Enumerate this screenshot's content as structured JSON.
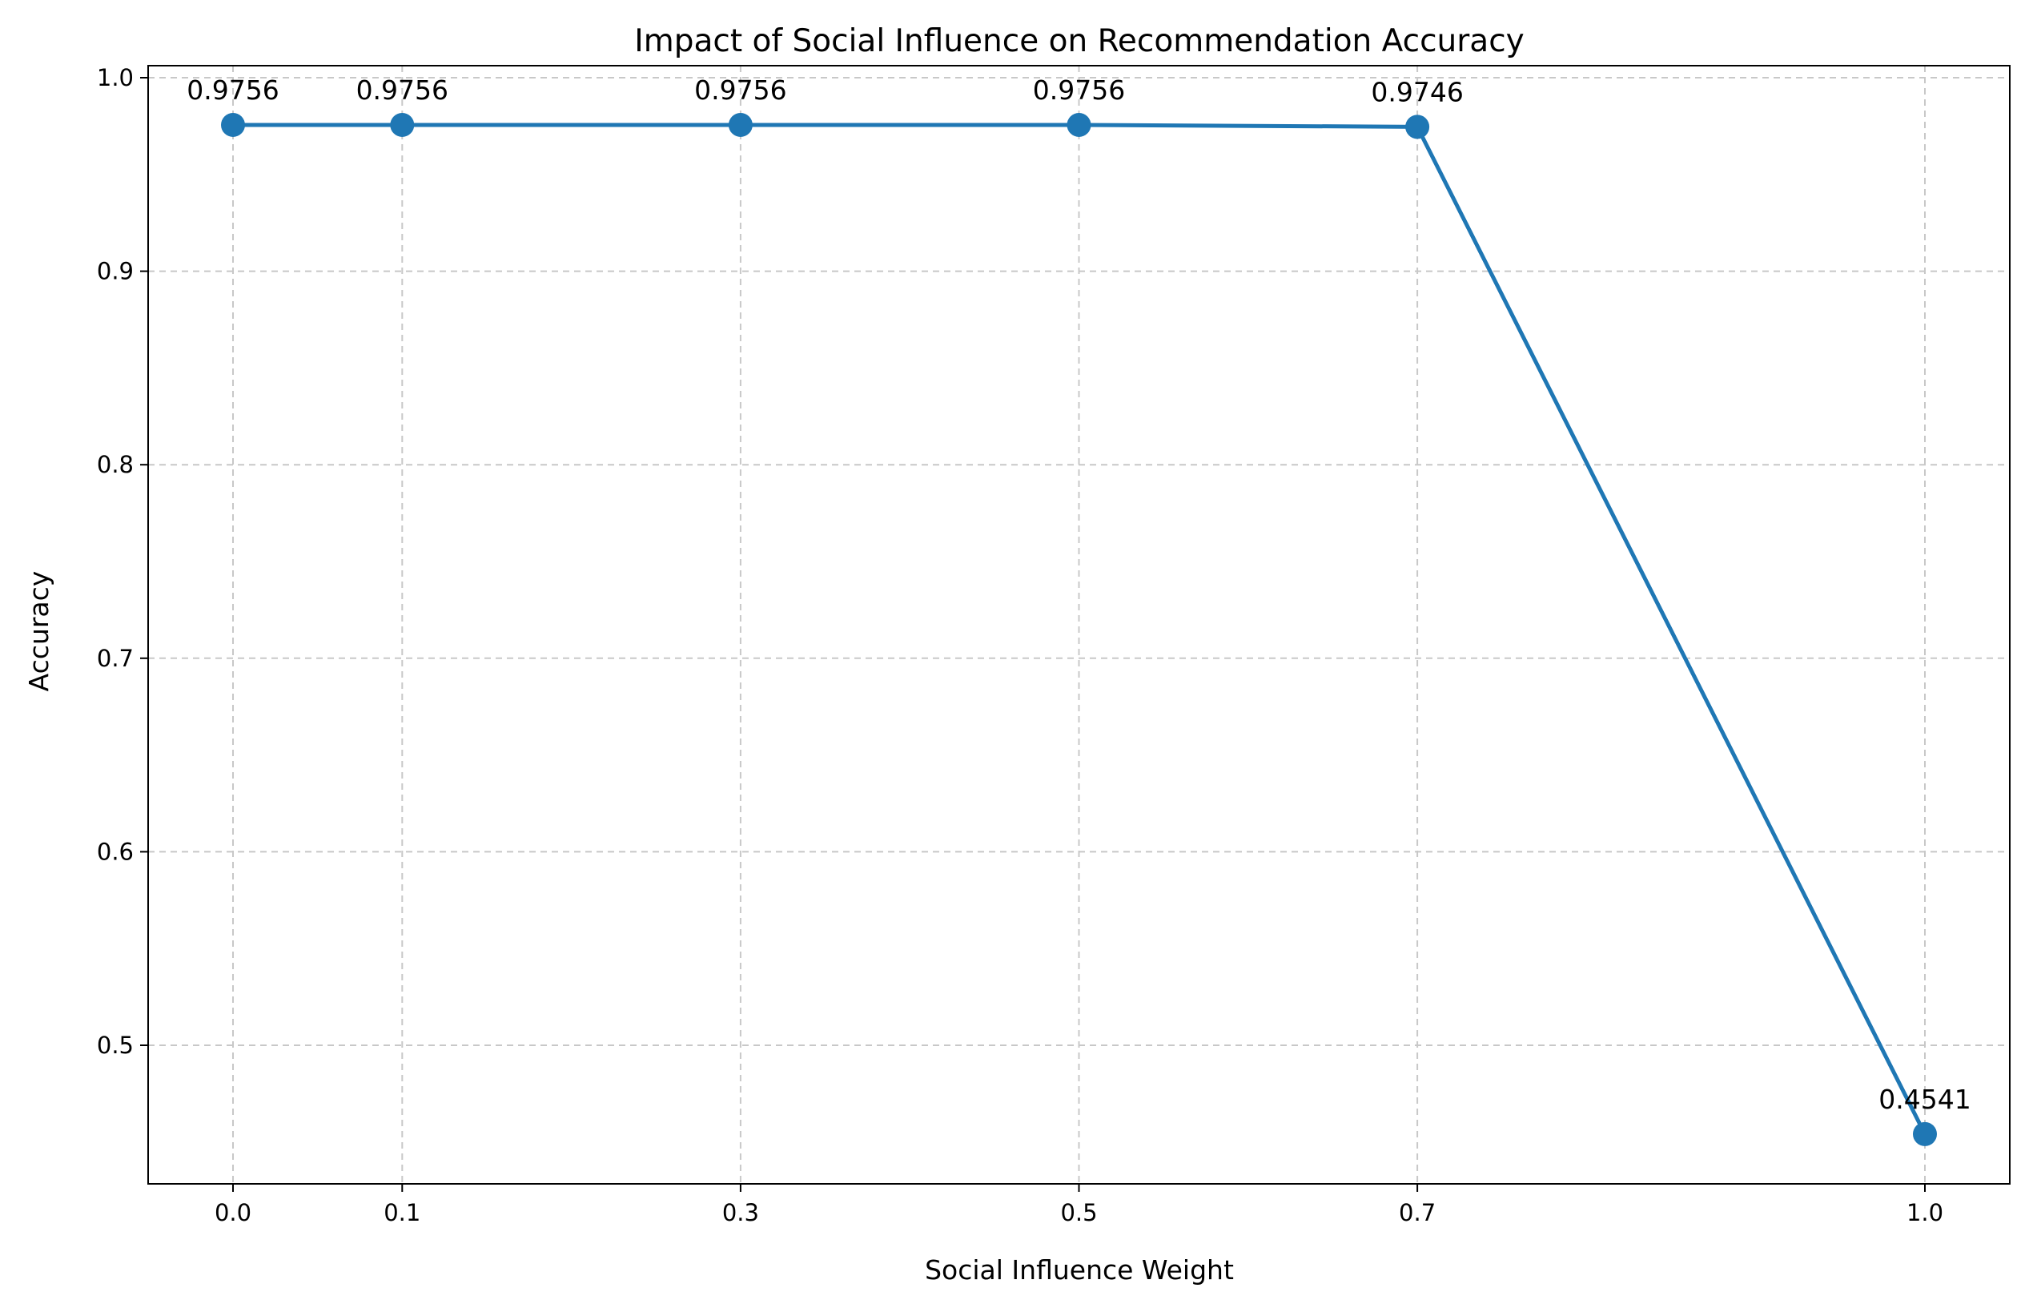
{
  "chart_data": {
    "type": "line",
    "title": "Impact of Social Influence on Recommendation Accuracy",
    "xlabel": "Social Influence Weight",
    "ylabel": "Accuracy",
    "x": [
      0.0,
      0.1,
      0.3,
      0.5,
      0.7,
      1.0
    ],
    "x_tick_labels": [
      "0.0",
      "0.1",
      "0.3",
      "0.5",
      "0.7",
      "1.0"
    ],
    "y_ticks": [
      0.5,
      0.6,
      0.7,
      0.8,
      0.9,
      1.0
    ],
    "y_tick_labels": [
      "0.5",
      "0.6",
      "0.7",
      "0.8",
      "0.9",
      "1.0"
    ],
    "series": [
      {
        "values": [
          0.9756,
          0.9756,
          0.9756,
          0.9756,
          0.9746,
          0.4541
        ],
        "data_labels": [
          "0.9756",
          "0.9756",
          "0.9756",
          "0.9756",
          "0.9746",
          "0.4541"
        ],
        "color": "#1f77b4",
        "marker": "circle"
      }
    ],
    "xlim": [
      -0.05,
      1.05
    ],
    "ylim": [
      0.428,
      1.002
    ],
    "grid": true,
    "grid_style": "dashed",
    "grid_color": "#c8c8c8",
    "legend": "none"
  }
}
